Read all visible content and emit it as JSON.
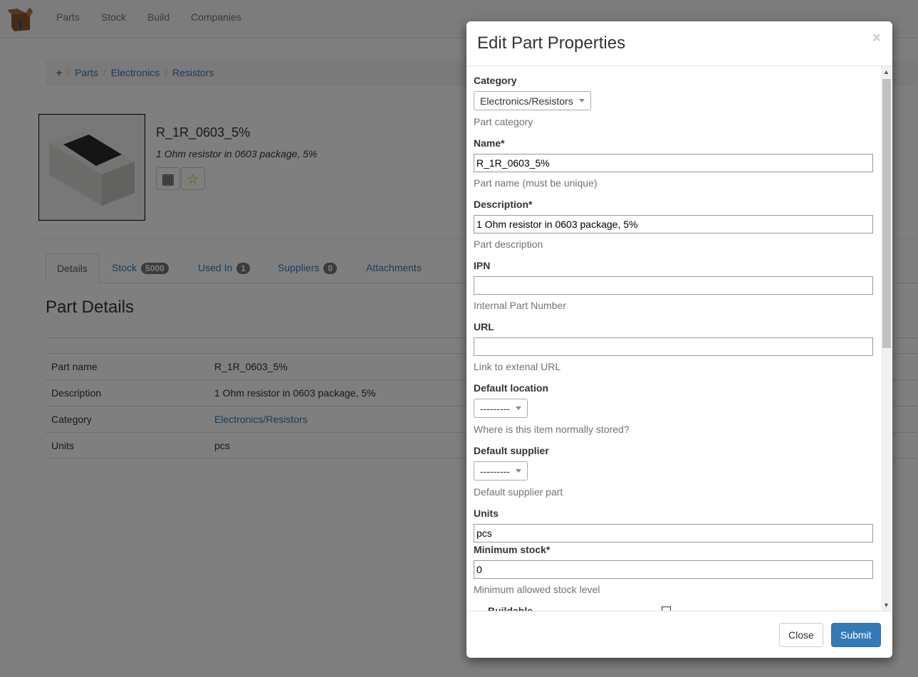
{
  "nav": {
    "items": [
      "Parts",
      "Stock",
      "Build",
      "Companies"
    ]
  },
  "breadcrumb": {
    "plus": "+",
    "items": [
      "Parts",
      "Electronics",
      "Resistors"
    ]
  },
  "part": {
    "name": "R_1R_0603_5%",
    "description": "1 Ohm resistor in 0603 package, 5%"
  },
  "tabs": [
    {
      "label": "Details"
    },
    {
      "label": "Stock",
      "badge": "5000"
    },
    {
      "label": "Used In",
      "badge": "1"
    },
    {
      "label": "Suppliers",
      "badge": "0"
    },
    {
      "label": "Attachments"
    }
  ],
  "details": {
    "title": "Part Details",
    "rows": [
      {
        "label": "Part name",
        "value": "R_1R_0603_5%"
      },
      {
        "label": "Description",
        "value": "1 Ohm resistor in 0603 package, 5%"
      },
      {
        "label": "Category",
        "value": "Electronics/Resistors"
      },
      {
        "label": "Units",
        "value": "pcs"
      }
    ]
  },
  "modal": {
    "title": "Edit Part Properties",
    "close_x": "×",
    "category": {
      "label": "Category",
      "value": "Electronics/Resistors",
      "help": "Part category"
    },
    "name": {
      "label": "Name*",
      "value": "R_1R_0603_5%",
      "help": "Part name (must be unique)"
    },
    "description": {
      "label": "Description*",
      "value": "1 Ohm resistor in 0603 package, 5%",
      "help": "Part description"
    },
    "ipn": {
      "label": "IPN",
      "value": "",
      "help": "Internal Part Number"
    },
    "url": {
      "label": "URL",
      "value": "",
      "help": "Link to extenal URL"
    },
    "location": {
      "label": "Default location",
      "value": "---------",
      "help": "Where is this item normally stored?"
    },
    "supplier": {
      "label": "Default supplier",
      "value": "---------",
      "help": "Default supplier part"
    },
    "units": {
      "label": "Units",
      "value": "pcs"
    },
    "minstock": {
      "label": "Minimum stock*",
      "value": "0",
      "help": "Minimum allowed stock level"
    },
    "buildable": {
      "label": "Buildable",
      "checked": false
    },
    "close_label": "Close",
    "submit_label": "Submit"
  },
  "colors": {
    "primary": "#337ab7",
    "link": "#337ab7"
  }
}
